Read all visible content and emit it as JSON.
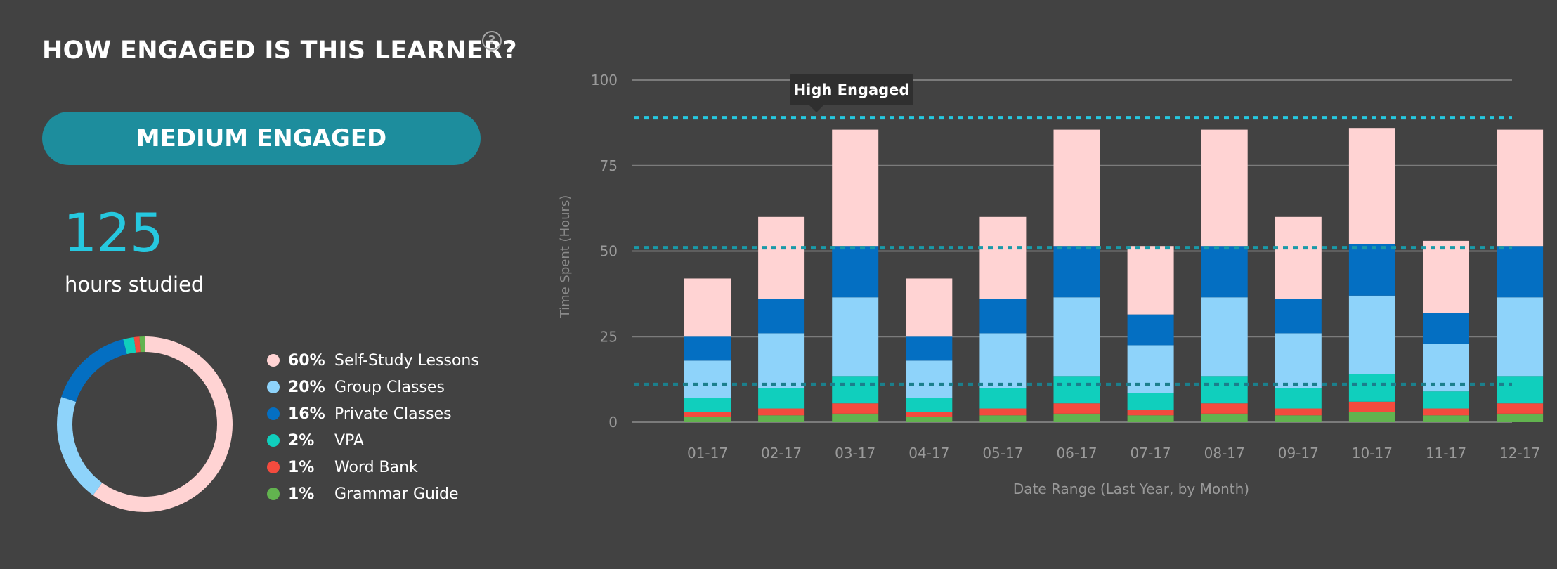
{
  "header": {
    "title": "HOW ENGAGED IS THIS LEARNER?",
    "help_icon": "question-circle-icon"
  },
  "engagement": {
    "level_label": "MEDIUM ENGAGED",
    "badge_color": "#1d8d9d"
  },
  "hours": {
    "value": "125",
    "label": "hours studied",
    "value_color": "#26c8df"
  },
  "breakdown": [
    {
      "pct": "60%",
      "label": "Self-Study Lessons",
      "value": 60,
      "color": "#ffd3d3"
    },
    {
      "pct": "20%",
      "label": "Group Classes",
      "value": 20,
      "color": "#8ed3fa"
    },
    {
      "pct": "16%",
      "label": "Private Classes",
      "value": 16,
      "color": "#046fc2"
    },
    {
      "pct": "2%",
      "label": "VPA",
      "value": 2,
      "color": "#10cfbd"
    },
    {
      "pct": "1%",
      "label": "Word Bank",
      "value": 1,
      "color": "#f44b3e"
    },
    {
      "pct": "1%",
      "label": "Grammar Guide",
      "value": 1,
      "color": "#62b34f"
    }
  ],
  "chart_data": {
    "type": "bar",
    "stacked": true,
    "categories": [
      "01-17",
      "02-17",
      "03-17",
      "04-17",
      "05-17",
      "06-17",
      "07-17",
      "08-17",
      "09-17",
      "10-17",
      "11-17",
      "12-17"
    ],
    "series": [
      {
        "name": "Grammar Guide",
        "color": "#62b34f",
        "values": [
          1.5,
          2,
          2.5,
          1.5,
          2,
          2.5,
          2,
          2.5,
          2,
          3,
          2,
          2.5
        ]
      },
      {
        "name": "Word Bank",
        "color": "#f44b3e",
        "values": [
          1.5,
          2,
          3,
          1.5,
          2,
          3,
          1.5,
          3,
          2,
          3,
          2,
          3
        ]
      },
      {
        "name": "VPA",
        "color": "#10cfbd",
        "values": [
          4,
          6,
          8,
          4,
          6,
          8,
          5,
          8,
          6,
          8,
          5,
          8
        ]
      },
      {
        "name": "Group Classes",
        "color": "#8ed3fa",
        "values": [
          11,
          16,
          23,
          11,
          16,
          23,
          14,
          23,
          16,
          23,
          14,
          23
        ]
      },
      {
        "name": "Private Classes",
        "color": "#046fc2",
        "values": [
          7,
          10,
          15,
          7,
          10,
          15,
          9,
          15,
          10,
          15,
          9,
          15
        ]
      },
      {
        "name": "Self-Study Lessons",
        "color": "#ffd3d3",
        "values": [
          17,
          24,
          34,
          17,
          24,
          34,
          20,
          34,
          24,
          34,
          21,
          34
        ]
      }
    ],
    "xlabel": "Date Range (Last Year, by Month)",
    "ylabel": "Time Spent (Hours)",
    "ylim": [
      0,
      100
    ],
    "yticks": [
      0,
      25,
      50,
      75,
      100
    ],
    "grid": true,
    "reference_lines": [
      {
        "value": 89,
        "color": "#26c8df",
        "label": "High Engaged"
      },
      {
        "value": 51,
        "color": "#1a9aa8"
      },
      {
        "value": 11,
        "color": "#1b7f8c"
      }
    ]
  }
}
